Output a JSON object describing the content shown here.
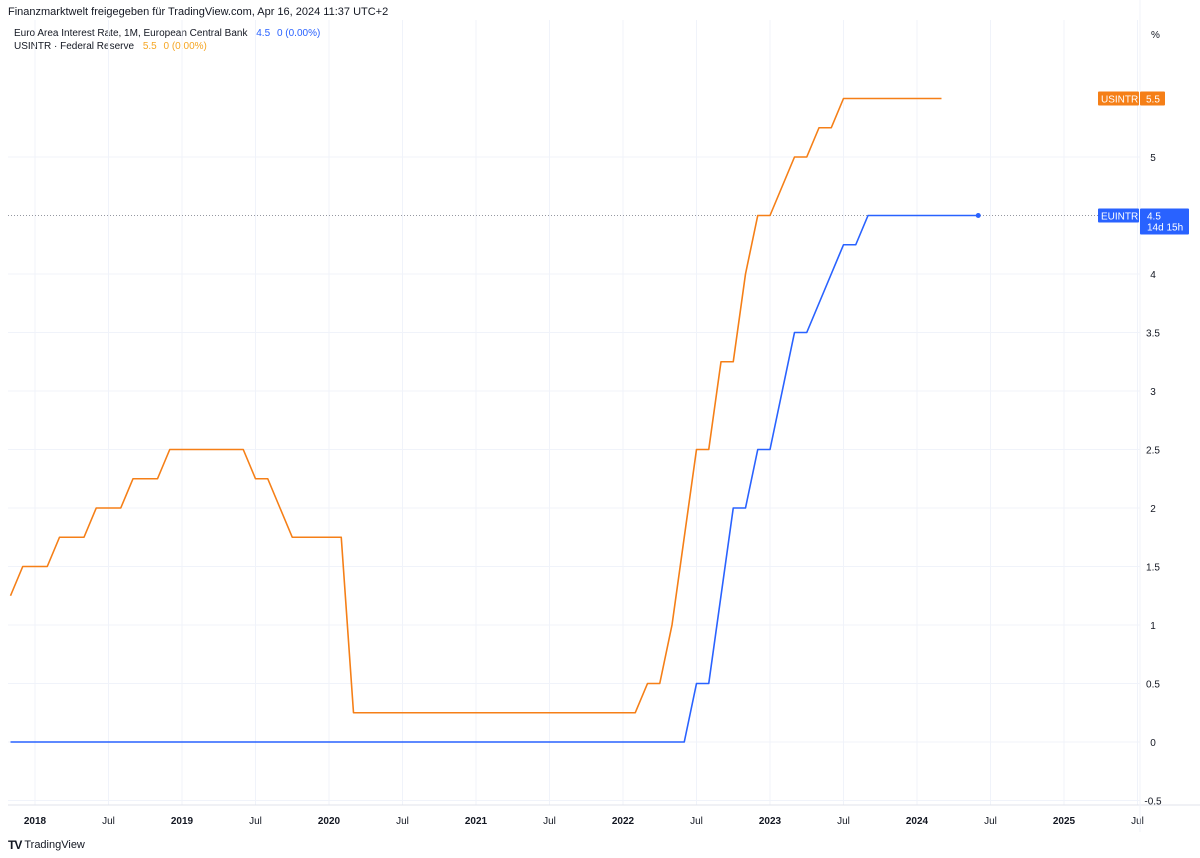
{
  "header": {
    "attribution": "Finanzmarktwelt freigegeben für TradingView.com, Apr 16, 2024 11:37 UTC+2",
    "legend": [
      {
        "name": "Euro Area Interest Rate, 1M, European Central Bank",
        "value": "4.5",
        "change": "0 (0.00%)",
        "color": "#2962ff"
      },
      {
        "name": "USINTR · Federal Reserve",
        "value": "5.5",
        "change": "0 (0.00%)",
        "color": "#f57f17"
      }
    ],
    "unit": "%"
  },
  "footer": {
    "logo_text": "TradingView"
  },
  "chart_data": {
    "type": "line",
    "start_month": "2017-11",
    "ylim": [
      -0.5,
      6
    ],
    "yticks": [
      "-0.5",
      "0",
      "0.5",
      "1",
      "1.5",
      "2",
      "2.5",
      "3",
      "3.5",
      "4",
      "5"
    ],
    "xticks": [
      {
        "label": "2018",
        "date": "2018-01",
        "bold": true
      },
      {
        "label": "Jul",
        "date": "2018-07"
      },
      {
        "label": "2019",
        "date": "2019-01",
        "bold": true
      },
      {
        "label": "Jul",
        "date": "2019-07"
      },
      {
        "label": "2020",
        "date": "2020-01",
        "bold": true
      },
      {
        "label": "Jul",
        "date": "2020-07"
      },
      {
        "label": "2021",
        "date": "2021-01",
        "bold": true
      },
      {
        "label": "Jul",
        "date": "2021-07"
      },
      {
        "label": "2022",
        "date": "2022-01",
        "bold": true
      },
      {
        "label": "Jul",
        "date": "2022-07"
      },
      {
        "label": "2023",
        "date": "2023-01",
        "bold": true
      },
      {
        "label": "Jul",
        "date": "2023-07"
      },
      {
        "label": "2024",
        "date": "2024-01",
        "bold": true
      },
      {
        "label": "Jul",
        "date": "2024-07"
      },
      {
        "label": "2025",
        "date": "2025-01",
        "bold": true
      },
      {
        "label": "Jul",
        "date": "2025-07"
      }
    ],
    "series": [
      {
        "name": "USINTR",
        "color": "#f57f17",
        "last": "5.5",
        "values": [
          1.25,
          1.5,
          1.5,
          1.5,
          1.75,
          1.75,
          1.75,
          2,
          2,
          2,
          2.25,
          2.25,
          2.25,
          2.5,
          2.5,
          2.5,
          2.5,
          2.5,
          2.5,
          2.5,
          2.25,
          2.25,
          2,
          1.75,
          1.75,
          1.75,
          1.75,
          1.75,
          0.25,
          0.25,
          0.25,
          0.25,
          0.25,
          0.25,
          0.25,
          0.25,
          0.25,
          0.25,
          0.25,
          0.25,
          0.25,
          0.25,
          0.25,
          0.25,
          0.25,
          0.25,
          0.25,
          0.25,
          0.25,
          0.25,
          0.25,
          0.25,
          0.5,
          0.5,
          1,
          1.75,
          2.5,
          2.5,
          3.25,
          3.25,
          4,
          4.5,
          4.5,
          4.75,
          5,
          5,
          5.25,
          5.25,
          5.5,
          5.5,
          5.5,
          5.5,
          5.5,
          5.5,
          5.5,
          5.5,
          5.5
        ]
      },
      {
        "name": "EUINTR",
        "color": "#2962ff",
        "last": "4.5",
        "countdown": "14d 15h",
        "values": [
          0,
          0,
          0,
          0,
          0,
          0,
          0,
          0,
          0,
          0,
          0,
          0,
          0,
          0,
          0,
          0,
          0,
          0,
          0,
          0,
          0,
          0,
          0,
          0,
          0,
          0,
          0,
          0,
          0,
          0,
          0,
          0,
          0,
          0,
          0,
          0,
          0,
          0,
          0,
          0,
          0,
          0,
          0,
          0,
          0,
          0,
          0,
          0,
          0,
          0,
          0,
          0,
          0,
          0,
          0,
          0,
          0.5,
          0.5,
          1.25,
          2,
          2,
          2.5,
          2.5,
          3,
          3.5,
          3.5,
          3.75,
          4,
          4.25,
          4.25,
          4.5,
          4.5,
          4.5,
          4.5,
          4.5,
          4.5,
          4.5,
          4.5,
          4.5,
          4.5
        ]
      }
    ]
  }
}
